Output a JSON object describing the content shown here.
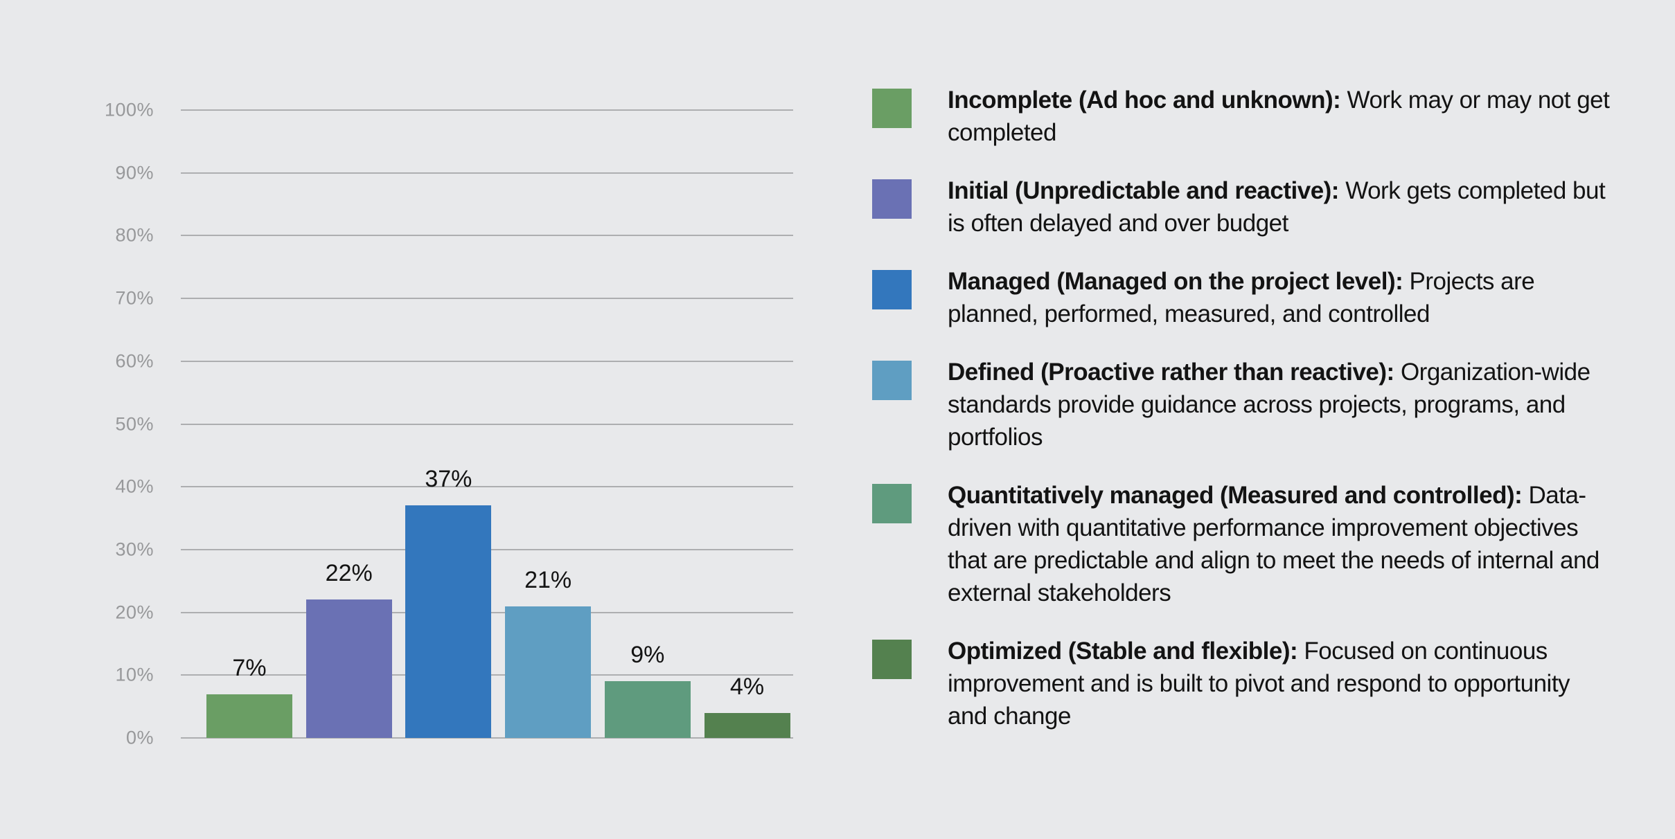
{
  "page": {
    "background": "#E8E9EB"
  },
  "chart_data": {
    "type": "bar",
    "title": "",
    "xlabel": "",
    "ylabel": "",
    "categories": [
      "Incomplete",
      "Initial",
      "Managed",
      "Defined",
      "Quantitatively managed",
      "Optimized"
    ],
    "values": [
      7,
      22,
      37,
      21,
      9,
      4
    ],
    "value_labels": [
      "7%",
      "22%",
      "37%",
      "21%",
      "9%",
      "4%"
    ],
    "colors": [
      "#6A9E64",
      "#6A71B4",
      "#3377BD",
      "#5F9EC2",
      "#5F9B7E",
      "#54814F"
    ],
    "y_ticks": [
      "100%",
      "90%",
      "80%",
      "70%",
      "60%",
      "50%",
      "40%",
      "30%",
      "20%",
      "10%",
      "0%"
    ],
    "ylim": [
      0,
      100
    ],
    "grid": true,
    "legend_position": "right"
  },
  "legend": {
    "items": [
      {
        "name": "Incomplete (Ad hoc and unknown):",
        "description": "Work may or may not get completed",
        "color": "#6A9E64"
      },
      {
        "name": "Initial (Unpredictable and reactive):",
        "description": "Work gets completed but is often delayed and over budget",
        "color": "#6A71B4"
      },
      {
        "name": "Managed (Managed on the project level):",
        "description": "Projects are planned, performed, measured, and controlled",
        "color": "#3377BD"
      },
      {
        "name": "Defined (Proactive rather than reactive):",
        "description": "Organization-wide standards provide guidance across projects, programs, and portfolios",
        "color": "#5F9EC2"
      },
      {
        "name": "Quantitatively managed (Measured and controlled):",
        "description": "Data-driven with quantitative performance improvement objectives that are predictable and align to meet the needs of internal and external stakeholders",
        "color": "#5F9B7E"
      },
      {
        "name": "Optimized (Stable and flexible):",
        "description": "Focused on continuous improvement and is built to pivot and respond to opportunity and change",
        "color": "#54814F"
      }
    ]
  },
  "style_colors": {
    "gridline": "#ADAEB0",
    "axis_label": "#97989A",
    "text": "#131313",
    "background": "#E8E9EB"
  }
}
